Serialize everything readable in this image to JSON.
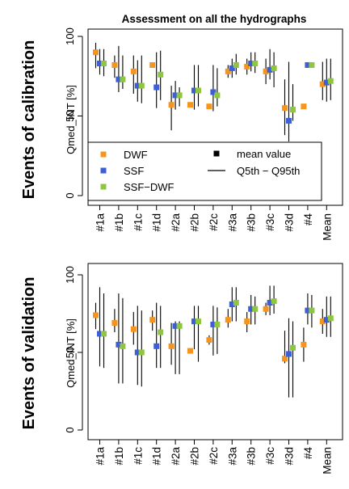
{
  "title": "Assessment on all the hydrographs",
  "colors": {
    "DWF": "#f7941d",
    "SSF": "#3d5fd6",
    "SSF-DWF": "#8fc63f",
    "range": "#000000"
  },
  "legend": {
    "items": [
      {
        "label": "DWF",
        "key": "DWF",
        "kind": "square"
      },
      {
        "label": "SSF",
        "key": "SSF",
        "kind": "square"
      },
      {
        "label": "SSF−DWF",
        "key": "SSF-DWF",
        "kind": "square"
      },
      {
        "label": "mean value",
        "key": "range",
        "kind": "square"
      },
      {
        "label": "Q5th − Q95th",
        "key": "range",
        "kind": "line"
      }
    ]
  },
  "chart_data": [
    {
      "type": "scatter",
      "panel_label": "Events of calibration",
      "ylabel": "Qmed_INT [%]",
      "ylim": [
        0,
        100
      ],
      "yticks": [
        0,
        50,
        100
      ],
      "legend_position": "bottom-left",
      "categories": [
        "#1a",
        "#1b",
        "#1c",
        "#1d",
        "#2a",
        "#2b",
        "#2c",
        "#3a",
        "#3b",
        "#3c",
        "#3d",
        "#4",
        "Mean"
      ],
      "series": [
        {
          "name": "DWF",
          "color": "#f7941d",
          "values": [
            90,
            82,
            78,
            82,
            57,
            57,
            56,
            78,
            81,
            78,
            55,
            56,
            70
          ],
          "q5": [
            80,
            74,
            64,
            null,
            41,
            null,
            null,
            74,
            76,
            70,
            38,
            null,
            60
          ],
          "q95": [
            96,
            88,
            88,
            null,
            69,
            null,
            null,
            82,
            86,
            86,
            73,
            null,
            84
          ]
        },
        {
          "name": "SSF",
          "color": "#3d5fd6",
          "values": [
            83,
            73,
            69,
            68,
            63,
            66,
            65,
            80,
            83,
            79,
            47,
            82,
            71
          ],
          "q5": [
            76,
            65,
            59,
            55,
            54,
            54,
            53,
            74,
            78,
            73,
            34,
            null,
            59
          ],
          "q95": [
            92,
            94,
            85,
            90,
            72,
            82,
            82,
            86,
            90,
            92,
            84,
            null,
            86
          ]
        },
        {
          "name": "SSF−DWF",
          "color": "#8fc63f",
          "values": [
            83,
            73,
            69,
            76,
            63,
            66,
            63,
            82,
            83,
            80,
            54,
            82,
            72
          ],
          "q5": [
            75,
            67,
            58,
            60,
            56,
            56,
            56,
            76,
            77,
            68,
            47,
            null,
            60
          ],
          "q95": [
            92,
            88,
            88,
            91,
            68,
            82,
            80,
            89,
            90,
            90,
            70,
            null,
            86
          ]
        }
      ]
    },
    {
      "type": "scatter",
      "panel_label": "Events of validation",
      "ylabel": "Qmed_INT [%]",
      "ylim": [
        0,
        100
      ],
      "yticks": [
        0,
        50,
        100
      ],
      "categories": [
        "#1a",
        "#1b",
        "#1c",
        "#1d",
        "#2a",
        "#2b",
        "#2c",
        "#3a",
        "#3b",
        "#3c",
        "#3d",
        "#4",
        "Mean"
      ],
      "series": [
        {
          "name": "DWF",
          "color": "#f7941d",
          "values": [
            74,
            69,
            65,
            71,
            54,
            51,
            58,
            71,
            70,
            78,
            46,
            55,
            70
          ],
          "q5": [
            65,
            63,
            55,
            64,
            42,
            null,
            55,
            66,
            63,
            74,
            43,
            44,
            62
          ],
          "q95": [
            82,
            78,
            76,
            77,
            69,
            null,
            61,
            78,
            76,
            82,
            64,
            66,
            78
          ]
        },
        {
          "name": "SSF",
          "color": "#3d5fd6",
          "values": [
            62,
            55,
            50,
            54,
            67,
            70,
            68,
            81,
            78,
            82,
            49,
            77,
            71
          ],
          "q5": [
            41,
            30,
            29,
            40,
            36,
            52,
            48,
            70,
            68,
            74,
            21,
            68,
            60
          ],
          "q95": [
            92,
            88,
            80,
            82,
            70,
            80,
            80,
            92,
            87,
            93,
            72,
            88,
            86
          ]
        },
        {
          "name": "SSF−DWF",
          "color": "#8fc63f",
          "values": [
            62,
            54,
            50,
            63,
            67,
            70,
            68,
            82,
            78,
            83,
            53,
            77,
            72
          ],
          "q5": [
            40,
            30,
            28,
            40,
            36,
            44,
            49,
            70,
            68,
            75,
            21,
            66,
            60
          ],
          "q95": [
            88,
            85,
            77,
            80,
            70,
            80,
            79,
            92,
            86,
            93,
            70,
            87,
            86
          ]
        }
      ]
    }
  ]
}
